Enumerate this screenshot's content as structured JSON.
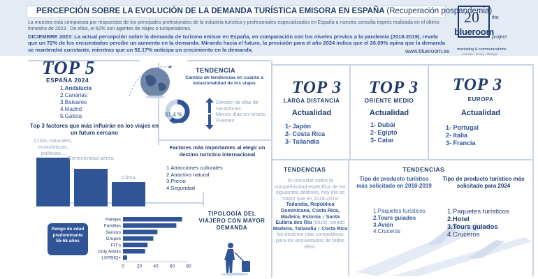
{
  "header": {
    "title_main": "PERCEPCIÓN SOBRE LA EVOLUCIÓN DE LA DEMANDA TURÍSTICA EMISORA EN ESPAÑA",
    "title_sub": "(Recuperación pospandemia)",
    "note": "La muestra está compuesta por respuestas de los principales profesionales de la industria turística y profesionales especializados en España a nuestra consulta exprés realizada en el último trimestre de 2023 . De ellos, el 62% son agentes de viajes o turoperadores.",
    "summary": "DICIEMBRE 2023: La actual percepción sobre la demanda de turismo emisor en España, en comparación con los niveles previos a la pandemia (2018-2019), revela que un 72% de los encuestados percibe un aumento en la demanda. Mirando hacia el futuro, la previsión para el año 2024 indica que el 26.09% opina que la demanda se mantendrá constante, mientras que un 52.17% anticipa un crecimiento en la demanda.",
    "website": "www.blueroom.es"
  },
  "logo": {
    "number": "20",
    "the": "the",
    "name": "blueroom",
    "project": "project",
    "tagline": "marketing & communications",
    "tagline2": "tourism • luxury • lifestyle"
  },
  "top5": {
    "title": "TOP 5",
    "subtitle": "ESPAÑA 2024",
    "items": [
      {
        "num": "1.",
        "label": "Andalucía"
      },
      {
        "num": "2.",
        "label": "Canarias"
      },
      {
        "num": "3.",
        "label": "Baleares"
      },
      {
        "num": "4.",
        "label": "Madrid"
      },
      {
        "num": "5.",
        "label": "Galicia"
      }
    ]
  },
  "factors": {
    "title": "Top 3 factores que más influirán en los viajes en un futuro cercano",
    "chart_data": {
      "type": "bar",
      "categories": [
        "Crisis naturales, económicas, políticas...",
        "Conectividad aérea",
        "Clima"
      ],
      "values": [
        3,
        2.3,
        1.5
      ]
    }
  },
  "tendencia": {
    "title": "TENDENCIA",
    "subtitle": "Cambio de tendencias en cuanto a estacionalidad de los viajes",
    "percent": "61,4 %",
    "percent_value": 61.4,
    "yes": "SÍ",
    "items": [
      "División de días de vacaciones",
      "Menos días en verano",
      "Puentes"
    ]
  },
  "factors2": {
    "title": "Factores más importantes al elegir un destino turístico internacional",
    "items": [
      "1.Atracciones culturales",
      "2.Atractivo natural",
      "3.Precio",
      "4.Seguridad"
    ]
  },
  "age": {
    "label": "Rango de edad predominante",
    "value": "55-65 años"
  },
  "tipologia": {
    "title": "TIPOLOGÍA DEL VIAJERO CON MAYOR DEMANDA",
    "chart_data": {
      "type": "bar",
      "orientation": "horizontal",
      "categories": [
        "Parejas",
        "Familias",
        "Seniors",
        "Grupos",
        "FIT's",
        "Only Adults",
        "LGTBIQ+"
      ],
      "values": [
        72,
        65,
        42,
        37,
        30,
        27,
        5
      ],
      "xlim": [
        0,
        80
      ],
      "xticks": [
        "0",
        "20",
        "40",
        "60",
        "80"
      ]
    }
  },
  "larga": {
    "title": "TOP 3",
    "subtitle": "LARGA DISTANCIA",
    "actual": "Actualidad",
    "items": [
      "1- Japón",
      "2- Costa Rica",
      "3- Tailandia"
    ]
  },
  "oriente": {
    "title": "TOP 3",
    "subtitle": "ORIENTE MEDIO",
    "actual": "Actualidad",
    "items": [
      "1- Dubái",
      "2- Egipto",
      "3- Catar"
    ]
  },
  "europa": {
    "title": "TOP 3",
    "subtitle": "EUROPA",
    "actual": "Actualidad",
    "items": [
      "1- Portugal",
      "2- Italia",
      "3- Francia"
    ]
  },
  "tendencias_b": {
    "title": "TENDENCIAS",
    "text_a": "Al consultar sobre la competitividad específica de los siguientes destinos, hoy día es mayor que en 2018-2019:",
    "hl_1": "Tailandia, República Dominicana, Costa Rica, Madeira, Estonia",
    "text_b": "y",
    "hl_2": "Santa Eulària des Riu",
    "text_c": "(Ibiza), siendo",
    "hl_3": "Madeira, Tailandia",
    "text_d": "y",
    "hl_4": "Costa Rica",
    "text_e": "los destinos más competitivos para los encuestados de todos ellos."
  },
  "tendencias_c": {
    "title": "TENDENCIAS",
    "col1_title": "Tipo de producto turístico más solicitado en 2018-2019",
    "col1_items": [
      "1.Paquetes turísticos",
      "2.Tours guiados",
      "3.Avión",
      "4.Cruceros"
    ],
    "col2_title": "Tipo de producto turístico más solicitado para 2024",
    "col2_items": [
      "1.Paquetes turísticos",
      "2.Hotel",
      "3.Tours guiados",
      "4.Cruceros"
    ]
  },
  "colors": {
    "navy": "#1f3a6b",
    "blue": "#2f5597",
    "muted": "#8ea2bf",
    "band": "#e4ebf4"
  }
}
